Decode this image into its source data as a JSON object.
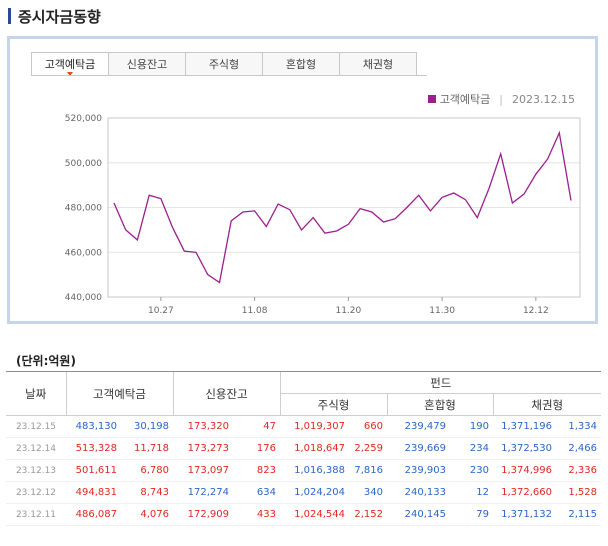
{
  "page": {
    "title": "증시자금동향"
  },
  "tabs": [
    "고객예탁금",
    "신용잔고",
    "주식형",
    "혼합형",
    "채권형"
  ],
  "legend": {
    "label": "고객예탁금",
    "date": "2023.12.15",
    "color": "#9b1f8d"
  },
  "chart_data": {
    "type": "line",
    "title": "고객예탁금",
    "ylim": [
      440000,
      520000
    ],
    "yticks": [
      "440,000",
      "460,000",
      "480,000",
      "500,000",
      "520,000"
    ],
    "ytick_values": [
      440000,
      460000,
      480000,
      500000,
      520000
    ],
    "xtick_labels": [
      "10.27",
      "11.08",
      "11.20",
      "11.30",
      "12.12"
    ],
    "xtick_index": [
      4,
      12,
      20,
      28,
      36
    ],
    "series": [
      {
        "name": "고객예탁금",
        "values": [
          482000,
          470000,
          465500,
          485500,
          484000,
          471000,
          460500,
          460000,
          450000,
          446500,
          474000,
          478000,
          478500,
          471500,
          481500,
          479000,
          470000,
          475500,
          468500,
          469500,
          472500,
          479500,
          478000,
          473500,
          475000,
          480000,
          485500,
          478500,
          484500,
          486500,
          483500,
          475500,
          488500,
          504000,
          482000,
          486087,
          494831,
          501611,
          513328,
          483130
        ]
      }
    ],
    "grid": true
  },
  "table": {
    "unit": "(단위:억원)",
    "headers": {
      "date": "날짜",
      "deposit": "고객예탁금",
      "credit": "신용잔고",
      "fund": "펀드",
      "stock": "주식형",
      "mixed": "혼합형",
      "bond": "채권형"
    },
    "rows": [
      {
        "date": "23.12.15",
        "deposit": "483,130",
        "deposit_chg": "30,198",
        "deposit_dir": "dn",
        "credit": "173,320",
        "credit_chg": "47",
        "credit_dir": "up",
        "stock": "1,019,307",
        "stock_chg": "660",
        "stock_dir": "up",
        "mixed": "239,479",
        "mixed_chg": "190",
        "mixed_dir": "dn",
        "bond": "1,371,196",
        "bond_chg": "1,334",
        "bond_dir": "dn"
      },
      {
        "date": "23.12.14",
        "deposit": "513,328",
        "deposit_chg": "11,718",
        "deposit_dir": "up",
        "credit": "173,273",
        "credit_chg": "176",
        "credit_dir": "up",
        "stock": "1,018,647",
        "stock_chg": "2,259",
        "stock_dir": "up",
        "mixed": "239,669",
        "mixed_chg": "234",
        "mixed_dir": "dn",
        "bond": "1,372,530",
        "bond_chg": "2,466",
        "bond_dir": "dn"
      },
      {
        "date": "23.12.13",
        "deposit": "501,611",
        "deposit_chg": "6,780",
        "deposit_dir": "up",
        "credit": "173,097",
        "credit_chg": "823",
        "credit_dir": "up",
        "stock": "1,016,388",
        "stock_chg": "7,816",
        "stock_dir": "dn",
        "mixed": "239,903",
        "mixed_chg": "230",
        "mixed_dir": "dn",
        "bond": "1,374,996",
        "bond_chg": "2,336",
        "bond_dir": "up"
      },
      {
        "date": "23.12.12",
        "deposit": "494,831",
        "deposit_chg": "8,743",
        "deposit_dir": "up",
        "credit": "172,274",
        "credit_chg": "634",
        "credit_dir": "dn",
        "stock": "1,024,204",
        "stock_chg": "340",
        "stock_dir": "dn",
        "mixed": "240,133",
        "mixed_chg": "12",
        "mixed_dir": "dn",
        "bond": "1,372,660",
        "bond_chg": "1,528",
        "bond_dir": "up"
      },
      {
        "date": "23.12.11",
        "deposit": "486,087",
        "deposit_chg": "4,076",
        "deposit_dir": "up",
        "credit": "172,909",
        "credit_chg": "433",
        "credit_dir": "up",
        "stock": "1,024,544",
        "stock_chg": "2,152",
        "stock_dir": "up",
        "mixed": "240,145",
        "mixed_chg": "79",
        "mixed_dir": "dn",
        "bond": "1,371,132",
        "bond_chg": "2,115",
        "bond_dir": "dn"
      }
    ]
  }
}
